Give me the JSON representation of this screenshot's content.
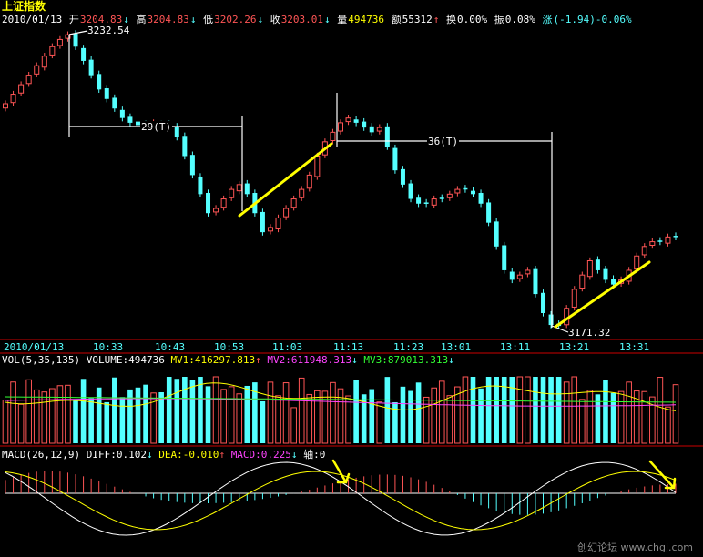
{
  "title": "上证指数",
  "info": {
    "date": "2010/01/13",
    "open_label": "开",
    "open": "3204.83",
    "high_label": "高",
    "high": "3204.83",
    "low_label": "低",
    "low": "3202.26",
    "close_label": "收",
    "close": "3203.01",
    "vol_label": "量",
    "vol": "494736",
    "amt_label": "额",
    "amt": "55312",
    "turn_label": "换",
    "turn": "0.00%",
    "amp_label": "振",
    "amp": "0.08%",
    "chg_label": "涨",
    "chg": "(-1.94)-0.06%",
    "arrow_down": "↓",
    "arrow_up": "↑"
  },
  "price_panel": {
    "high_mark": "3232.54",
    "low_mark": "3171.32",
    "span1_label": "29(T)",
    "span2_label": "36(T)",
    "colors": {
      "up": "#ff5555",
      "down": "#54ffff",
      "trend": "#ffff00",
      "annotation": "#ffffff"
    }
  },
  "time_axis": {
    "labels": [
      "2010/01/13",
      "10:33",
      "10:43",
      "10:53",
      "11:03",
      "11:13",
      "11:23",
      "13:01",
      "13:11",
      "13:21",
      "13:31"
    ]
  },
  "vol_panel": {
    "header": "VOL(5,35,135)",
    "volume_label": "VOLUME:494736",
    "mv1": "MV1:416297.813",
    "mv2": "MV2:611948.313",
    "mv3": "MV3:879013.313"
  },
  "macd_panel": {
    "header": "MACD(26,12,9)",
    "diff": "DIFF:0.102",
    "dea": "DEA:-0.010",
    "macd": "MACD:0.225",
    "axis": "轴:0"
  },
  "watermark": "创幻论坛 www.chgj.com",
  "chart_data": [
    {
      "type": "candlestick",
      "title": "上证指数",
      "interval": "1 minute bars",
      "y_marks": {
        "high": 3232.54,
        "low": 3171.32
      },
      "annotations": [
        "29(T)",
        "36(T)"
      ],
      "close_series": [
        3218,
        3220,
        3222,
        3224,
        3226,
        3228,
        3230,
        3231.5,
        3232.5,
        3230,
        3227,
        3224,
        3221,
        3219,
        3217,
        3215,
        3214,
        3213.5,
        3213,
        3214,
        3213.5,
        3213,
        3211,
        3207,
        3203,
        3199,
        3195,
        3196,
        3198,
        3200,
        3201,
        3199,
        3195,
        3191,
        3192,
        3194,
        3196,
        3198,
        3200,
        3203,
        3207,
        3210,
        3212,
        3214,
        3215,
        3214,
        3213,
        3212,
        3213,
        3209,
        3204,
        3201,
        3198,
        3197,
        3197,
        3198,
        3198,
        3199,
        3200,
        3200,
        3199,
        3197,
        3193,
        3188,
        3183,
        3181,
        3182,
        3183,
        3178,
        3174,
        3171.5,
        3171.3,
        3175,
        3179,
        3182,
        3185,
        3183,
        3181,
        3180,
        3181,
        3183,
        3186,
        3188,
        3189,
        3189,
        3190,
        3190
      ]
    },
    {
      "type": "bar",
      "title": "VOL(5,35,135)",
      "last_volume": 494736,
      "MV1": 416297.813,
      "MV2": 611948.313,
      "MV3": 879013.313
    },
    {
      "type": "bar",
      "title": "MACD(26,12,9)",
      "DIFF": 0.102,
      "DEA": -0.01,
      "MACD": 0.225
    }
  ]
}
